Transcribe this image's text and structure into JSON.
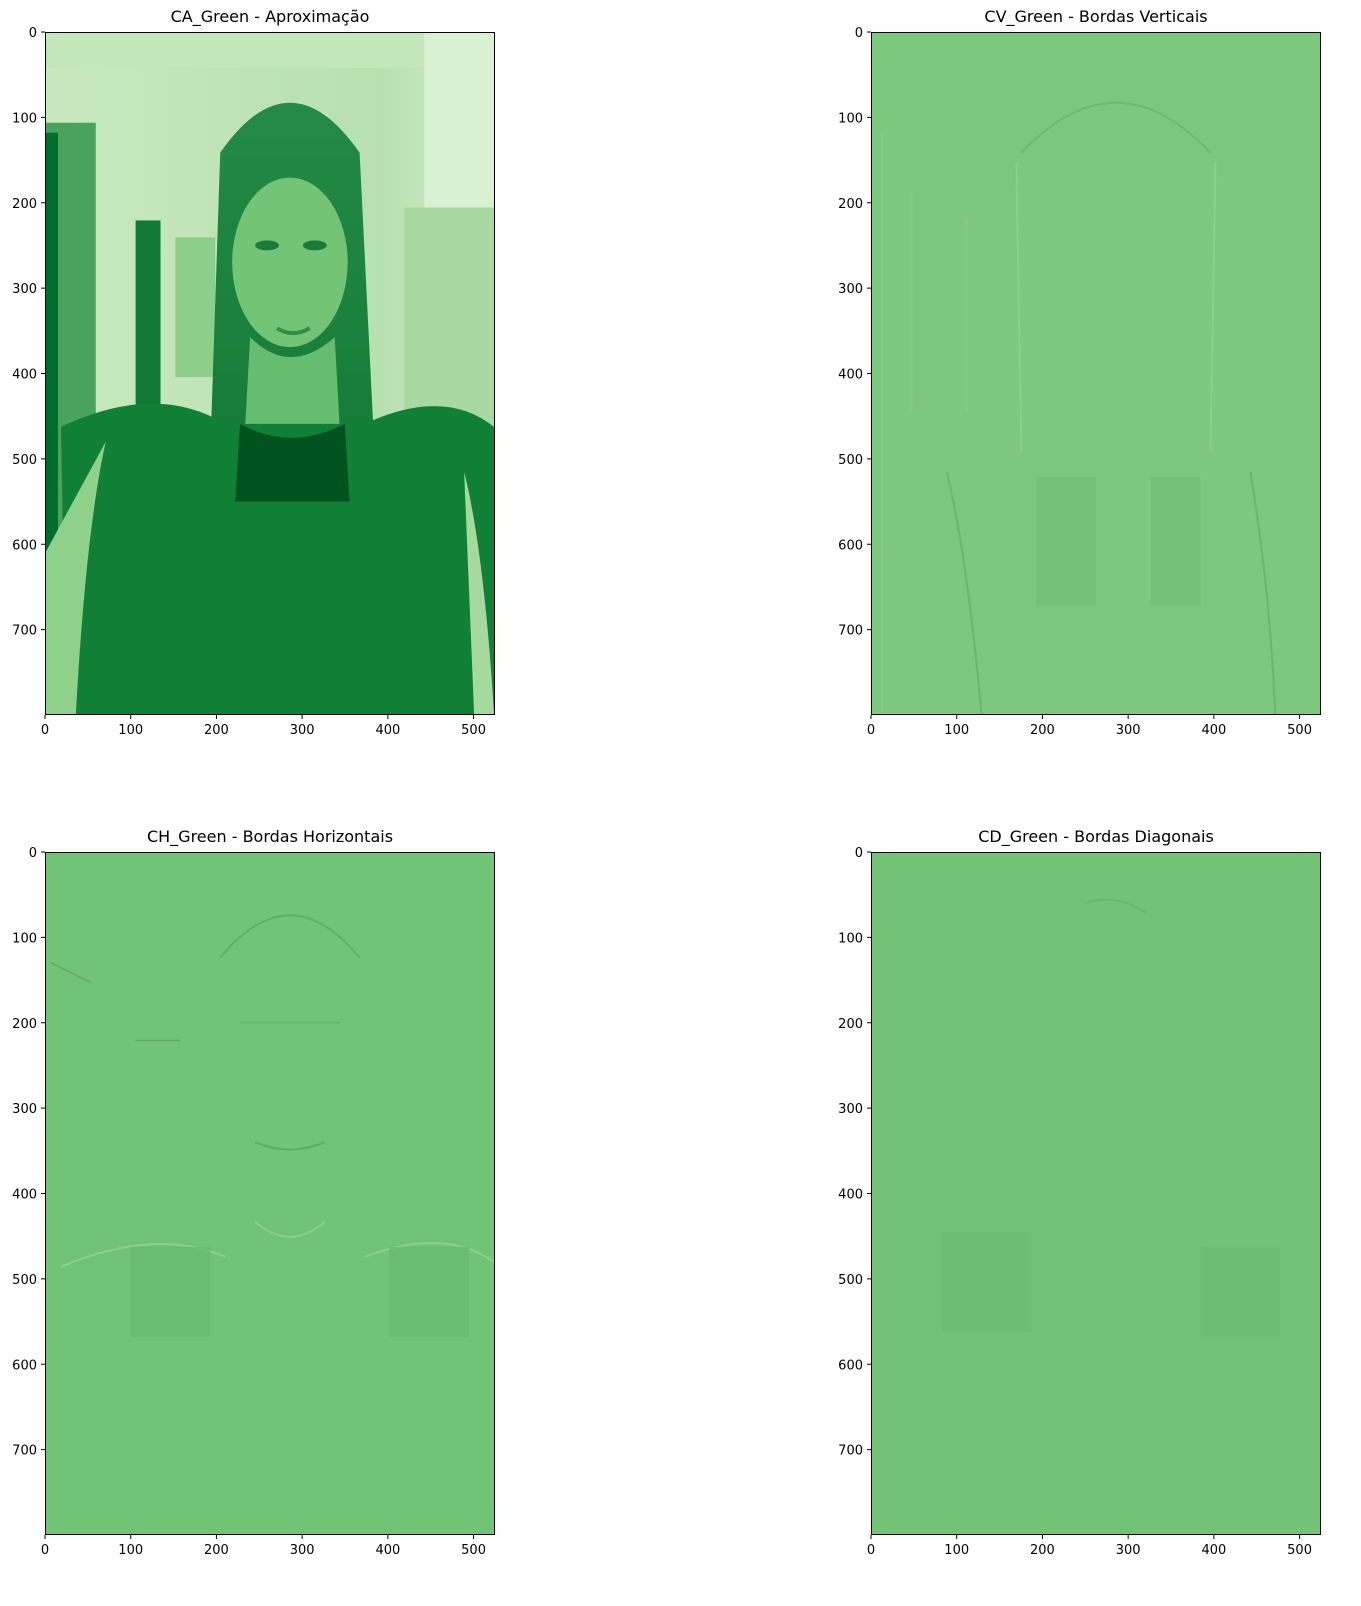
{
  "chart_data": [
    {
      "type": "heatmap",
      "title": "CA_Green - Aproximação",
      "xlabel": "",
      "ylabel": "",
      "x_ticks": [
        "0",
        "100",
        "200",
        "300",
        "400",
        "500"
      ],
      "y_ticks": [
        "0",
        "100",
        "200",
        "300",
        "400",
        "500",
        "600",
        "700"
      ],
      "xlim": [
        0,
        525
      ],
      "ylim": [
        800,
        0
      ],
      "grid": false,
      "colormap": "Greens",
      "content": "image"
    },
    {
      "type": "heatmap",
      "title": "CV_Green - Bordas Verticais",
      "xlabel": "",
      "ylabel": "",
      "x_ticks": [
        "0",
        "100",
        "200",
        "300",
        "400",
        "500"
      ],
      "y_ticks": [
        "0",
        "100",
        "200",
        "300",
        "400",
        "500",
        "600",
        "700"
      ],
      "xlim": [
        0,
        525
      ],
      "ylim": [
        800,
        0
      ],
      "grid": false,
      "colormap": "Greens",
      "content": "edge-map"
    },
    {
      "type": "heatmap",
      "title": "CH_Green - Bordas Horizontais",
      "xlabel": "",
      "ylabel": "",
      "x_ticks": [
        "0",
        "100",
        "200",
        "300",
        "400",
        "500"
      ],
      "y_ticks": [
        "0",
        "100",
        "200",
        "300",
        "400",
        "500",
        "600",
        "700"
      ],
      "xlim": [
        0,
        525
      ],
      "ylim": [
        800,
        0
      ],
      "grid": false,
      "colormap": "Greens",
      "content": "edge-map"
    },
    {
      "type": "heatmap",
      "title": "CD_Green - Bordas Diagonais",
      "xlabel": "",
      "ylabel": "",
      "x_ticks": [
        "0",
        "100",
        "200",
        "300",
        "400",
        "500"
      ],
      "y_ticks": [
        "0",
        "100",
        "200",
        "300",
        "400",
        "500",
        "600",
        "700"
      ],
      "xlim": [
        0,
        525
      ],
      "ylim": [
        800,
        0
      ],
      "grid": false,
      "colormap": "Greens",
      "content": "edge-map"
    }
  ],
  "colors": {
    "approx_light": "#d6efd0",
    "approx_mid": "#4fae62",
    "approx_dark": "#006428",
    "edge_vertical_bg": "#7cc87c",
    "edge_horizontal_bg": "#71c375",
    "edge_diagonal_bg": "#72c375"
  }
}
